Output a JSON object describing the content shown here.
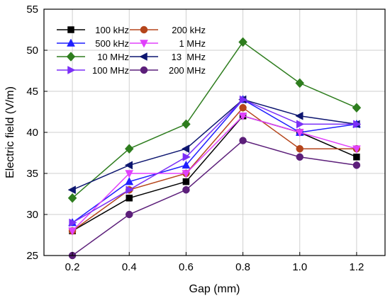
{
  "chart_data": {
    "type": "line",
    "title": "",
    "xlabel": "Gap (mm)",
    "ylabel": "Electric field (V/m)",
    "x": [
      0.2,
      0.4,
      0.6,
      0.8,
      1.0,
      1.2
    ],
    "x_tick_labels": [
      "0.2",
      "0.4",
      "0.6",
      "0.8",
      "1.0",
      "1.2"
    ],
    "xlim": [
      0.1,
      1.3
    ],
    "ylim": [
      25,
      55
    ],
    "y_ticks": [
      25,
      30,
      35,
      40,
      45,
      50,
      55
    ],
    "grid": true,
    "legend_position": "top-left",
    "series": [
      {
        "name": "100 kHz",
        "color": "#000000",
        "marker": "square",
        "values": [
          28,
          32,
          34,
          42,
          40,
          37
        ]
      },
      {
        "name": "200 kHz",
        "color": "#b5451b",
        "marker": "circle",
        "values": [
          28,
          33,
          35,
          43,
          38,
          38
        ]
      },
      {
        "name": "500 kHz",
        "color": "#1f1fff",
        "marker": "triangle-up",
        "values": [
          29,
          34,
          36,
          44,
          40,
          41
        ]
      },
      {
        "name": "1 MHz",
        "color": "#e040fb",
        "marker": "triangle-down",
        "values": [
          28,
          35,
          35,
          42,
          40,
          38
        ]
      },
      {
        "name": "10 MHz",
        "color": "#2e7d1e",
        "marker": "diamond",
        "values": [
          32,
          38,
          41,
          51,
          46,
          43
        ]
      },
      {
        "name": "13  MHz",
        "color": "#0d1670",
        "marker": "triangle-left",
        "values": [
          33,
          36,
          38,
          44,
          42,
          41
        ]
      },
      {
        "name": "100 MHz",
        "color": "#7b2ff7",
        "marker": "triangle-right",
        "values": [
          29,
          33,
          37,
          44,
          41,
          41
        ]
      },
      {
        "name": "200 MHz",
        "color": "#5c1f7a",
        "marker": "circle",
        "values": [
          25,
          30,
          33,
          39,
          37,
          36
        ]
      }
    ]
  }
}
